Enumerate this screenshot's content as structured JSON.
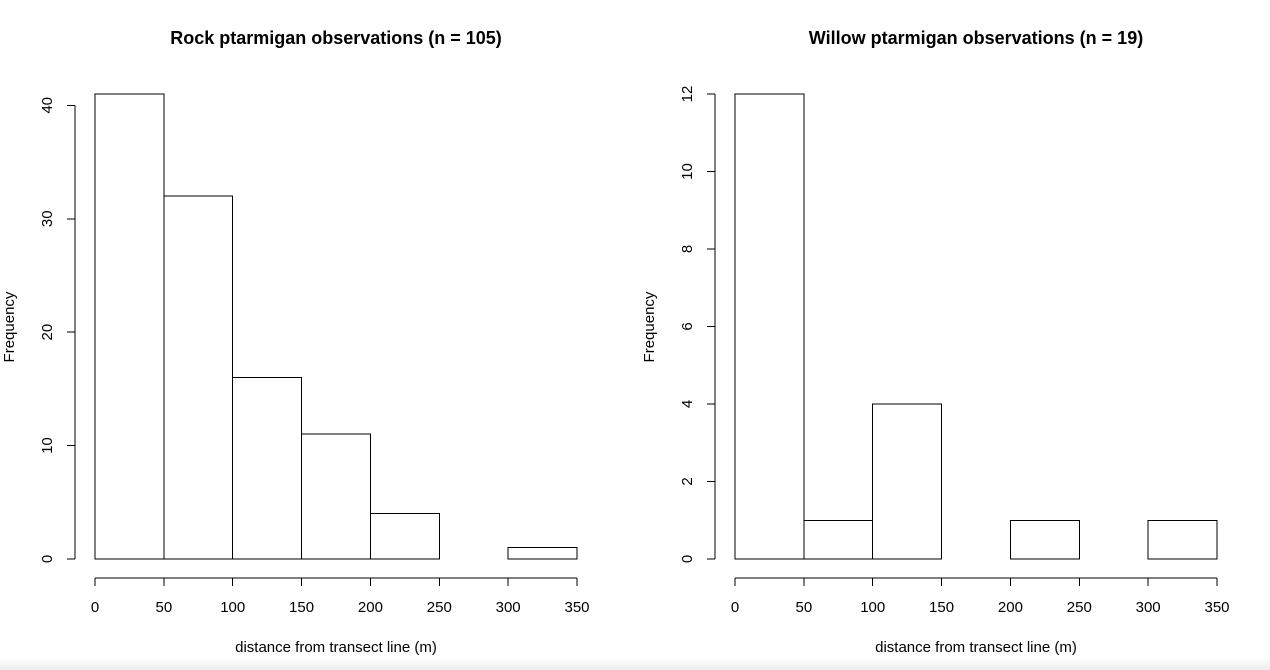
{
  "chart_data": [
    {
      "type": "bar",
      "title": "Rock ptarmigan observations (n = 105)",
      "xlabel": "distance from transect line (m)",
      "ylabel": "Frequency",
      "bin_edges": [
        0,
        50,
        100,
        150,
        200,
        250,
        300,
        350
      ],
      "values": [
        41,
        32,
        16,
        11,
        4,
        0,
        1
      ],
      "xlim": [
        0,
        350
      ],
      "ylim": [
        0,
        41
      ],
      "x_ticks": [
        0,
        50,
        100,
        150,
        200,
        250,
        300,
        350
      ],
      "x_tick_labels": [
        "0",
        "50",
        "100",
        "150",
        "200",
        "250",
        "300",
        "350"
      ],
      "y_ticks": [
        0,
        10,
        20,
        30,
        40
      ],
      "y_tick_labels": [
        "0",
        "10",
        "20",
        "30",
        "40"
      ],
      "grid": false,
      "legend": "none"
    },
    {
      "type": "bar",
      "title": "Willow ptarmigan observations (n = 19)",
      "xlabel": "distance from transect line (m)",
      "ylabel": "Frequency",
      "bin_edges": [
        0,
        50,
        100,
        150,
        200,
        250,
        300,
        350
      ],
      "values": [
        12,
        1,
        4,
        0,
        1,
        0,
        1
      ],
      "xlim": [
        0,
        350
      ],
      "ylim": [
        0,
        12
      ],
      "x_ticks": [
        0,
        50,
        100,
        150,
        200,
        250,
        300,
        350
      ],
      "x_tick_labels": [
        "0",
        "50",
        "100",
        "150",
        "200",
        "250",
        "300",
        "350"
      ],
      "y_ticks": [
        0,
        2,
        4,
        6,
        8,
        10,
        12
      ],
      "y_tick_labels": [
        "0",
        "2",
        "4",
        "6",
        "8",
        "10",
        "12"
      ],
      "grid": false,
      "legend": "none"
    }
  ]
}
